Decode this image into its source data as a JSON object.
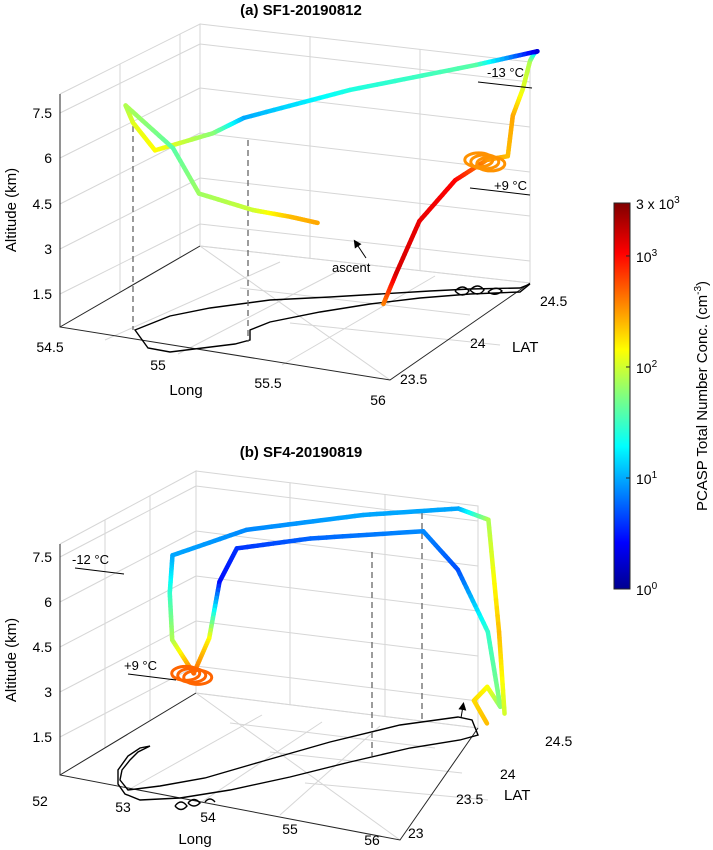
{
  "chart_data": [
    {
      "type": "line",
      "title": "(a) SF1-20190812",
      "xlabel": "Long",
      "ylabel": "LAT",
      "zlabel": "Altitude (km)",
      "x_ticks": [
        "54.5",
        "55",
        "55.5",
        "56"
      ],
      "y_ticks": [
        "23.5",
        "24",
        "24.5"
      ],
      "z_ticks": [
        "1.5",
        "3",
        "4.5",
        "6",
        "7.5"
      ],
      "annotations": [
        "-13 °C",
        "+9 °C",
        "ascent"
      ],
      "series": [
        {
          "description": "flight track colored by PCASP concentration",
          "points": [
            {
              "lon": 55.62,
              "lat": 24.05,
              "alt_km": 0.6,
              "conc": 400
            },
            {
              "lon": 55.66,
              "lat": 24.08,
              "alt_km": 1.6,
              "conc": 1500
            },
            {
              "lon": 55.72,
              "lat": 24.15,
              "alt_km": 3.2,
              "conc": 1300
            },
            {
              "lon": 55.8,
              "lat": 24.28,
              "alt_km": 4.3,
              "conc": 1100
            },
            {
              "lon": 55.88,
              "lat": 24.38,
              "alt_km": 4.8,
              "conc": 350
            },
            {
              "lon": 55.95,
              "lat": 24.42,
              "alt_km": 4.9,
              "conc": 250
            },
            {
              "lon": 55.96,
              "lat": 24.44,
              "alt_km": 6.2,
              "conc": 300
            },
            {
              "lon": 55.98,
              "lat": 24.48,
              "alt_km": 7.0,
              "conc": 120
            },
            {
              "lon": 56.0,
              "lat": 24.5,
              "alt_km": 7.9,
              "conc": 80
            },
            {
              "lon": 56.02,
              "lat": 24.5,
              "alt_km": 8.2,
              "conc": 20
            },
            {
              "lon": 56.04,
              "lat": 24.49,
              "alt_km": 8.3,
              "conc": 2
            },
            {
              "lon": 55.85,
              "lat": 24.35,
              "alt_km": 8.0,
              "conc": 40
            },
            {
              "lon": 55.5,
              "lat": 24.0,
              "alt_km": 7.7,
              "conc": 25
            },
            {
              "lon": 55.22,
              "lat": 23.68,
              "alt_km": 7.3,
              "conc": 10
            },
            {
              "lon": 55.13,
              "lat": 23.6,
              "alt_km": 6.9,
              "conc": 60
            },
            {
              "lon": 54.9,
              "lat": 23.55,
              "alt_km": 6.2,
              "conc": 150
            },
            {
              "lon": 54.8,
              "lat": 23.55,
              "alt_km": 7.0,
              "conc": 120
            },
            {
              "lon": 54.76,
              "lat": 23.56,
              "alt_km": 7.5,
              "conc": 80
            },
            {
              "lon": 54.95,
              "lat": 23.6,
              "alt_km": 6.2,
              "conc": 40
            },
            {
              "lon": 55.1,
              "lat": 23.55,
              "alt_km": 5.0,
              "conc": 70
            },
            {
              "lon": 55.3,
              "lat": 23.62,
              "alt_km": 4.5,
              "conc": 100
            },
            {
              "lon": 55.42,
              "lat": 23.7,
              "alt_km": 4.2,
              "conc": 250
            },
            {
              "lon": 55.48,
              "lat": 23.8,
              "alt_km": 3.8,
              "conc": 300
            }
          ]
        }
      ],
      "colorbar": {
        "label": "PCASP Total Number Conc. (cm",
        "label_sup": "-3",
        "label_end": ")",
        "scale": "log",
        "range": [
          1,
          3000
        ],
        "ticks": [
          {
            "base": "10",
            "exp": "0"
          },
          {
            "base": "10",
            "exp": "1"
          },
          {
            "base": "10",
            "exp": "2"
          },
          {
            "base": "10",
            "exp": "3"
          },
          {
            "base": "3 x 10",
            "exp": "3"
          }
        ],
        "colormap": "jet"
      }
    },
    {
      "type": "line",
      "title": "(b) SF4-20190819",
      "xlabel": "Long",
      "ylabel": "LAT",
      "zlabel": "Altitude (km)",
      "x_ticks": [
        "52",
        "53",
        "54",
        "55",
        "56"
      ],
      "y_ticks": [
        "23",
        "23.5",
        "24",
        "24.5"
      ],
      "z_ticks": [
        "1.5",
        "3",
        "4.5",
        "6",
        "7.5"
      ],
      "annotations": [
        "-12 °C",
        "+9 °C"
      ],
      "series": [
        {
          "description": "flight track colored by PCASP concentration",
          "points": [
            {
              "lon": 55.85,
              "lat": 24.1,
              "alt_km": 1.8,
              "conc": 250
            },
            {
              "lon": 55.75,
              "lat": 24.05,
              "alt_km": 2.6,
              "conc": 200
            },
            {
              "lon": 55.8,
              "lat": 24.15,
              "alt_km": 2.9,
              "conc": 150
            },
            {
              "lon": 55.9,
              "lat": 24.2,
              "alt_km": 2.2,
              "conc": 60
            },
            {
              "lon": 55.7,
              "lat": 24.25,
              "alt_km": 4.5,
              "conc": 30
            },
            {
              "lon": 55.4,
              "lat": 24.2,
              "alt_km": 6.5,
              "conc": 5
            },
            {
              "lon": 55.1,
              "lat": 24.1,
              "alt_km": 7.8,
              "conc": 8
            },
            {
              "lon": 54.2,
              "lat": 23.7,
              "alt_km": 7.8,
              "conc": 6
            },
            {
              "lon": 53.6,
              "lat": 23.45,
              "alt_km": 7.6,
              "conc": 4
            },
            {
              "lon": 53.45,
              "lat": 23.4,
              "alt_km": 6.5,
              "conc": 3
            },
            {
              "lon": 53.35,
              "lat": 23.38,
              "alt_km": 4.6,
              "conc": 150
            },
            {
              "lon": 53.2,
              "lat": 23.35,
              "alt_km": 3.4,
              "conc": 500
            },
            {
              "lon": 53.0,
              "lat": 23.3,
              "alt_km": 4.5,
              "conc": 80
            },
            {
              "lon": 52.95,
              "lat": 23.32,
              "alt_km": 6.0,
              "conc": 30
            },
            {
              "lon": 52.95,
              "lat": 23.35,
              "alt_km": 7.2,
              "conc": 10
            },
            {
              "lon": 53.5,
              "lat": 23.65,
              "alt_km": 7.8,
              "conc": 8
            },
            {
              "lon": 54.5,
              "lat": 24.0,
              "alt_km": 8.2,
              "conc": 10
            },
            {
              "lon": 55.3,
              "lat": 24.3,
              "alt_km": 8.3,
              "conc": 10
            },
            {
              "lon": 55.6,
              "lat": 24.35,
              "alt_km": 8.0,
              "conc": 80
            },
            {
              "lon": 55.8,
              "lat": 24.28,
              "alt_km": 4.5,
              "conc": 250
            },
            {
              "lon": 55.95,
              "lat": 24.2,
              "alt_km": 2.0,
              "conc": 100
            }
          ]
        }
      ]
    }
  ]
}
